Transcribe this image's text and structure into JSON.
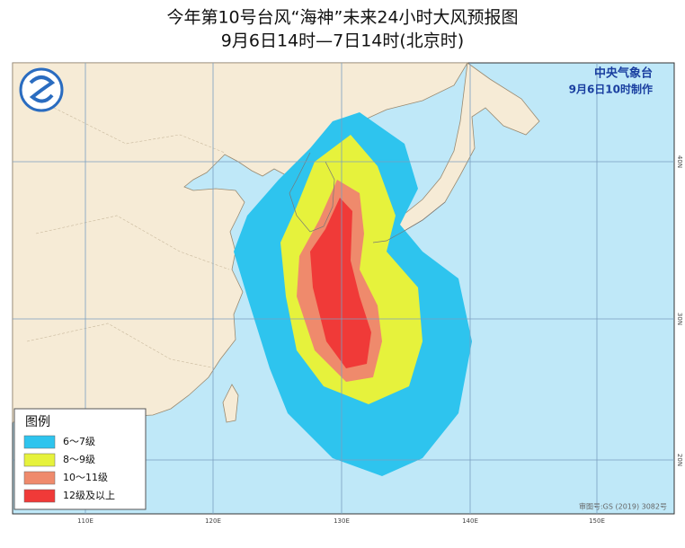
{
  "header": {
    "title": "今年第10号台风“海神”未来24小时大风预报图",
    "subtitle": "9月6日14时—7日14时(北京时)"
  },
  "agency": {
    "name": "中央气象台",
    "time": "9月6日10时制作"
  },
  "legend": {
    "title": "图例",
    "items": [
      "6～7级",
      "8～9级",
      "10～11级",
      "12级及以上"
    ]
  },
  "axes": {
    "lon_labels": [
      "110E",
      "120E",
      "130E",
      "140E",
      "150E"
    ],
    "lat_labels": [
      "40N",
      "30N",
      "20N"
    ]
  },
  "footer": {
    "approval": "审图号:GS (2019) 3082号"
  }
}
